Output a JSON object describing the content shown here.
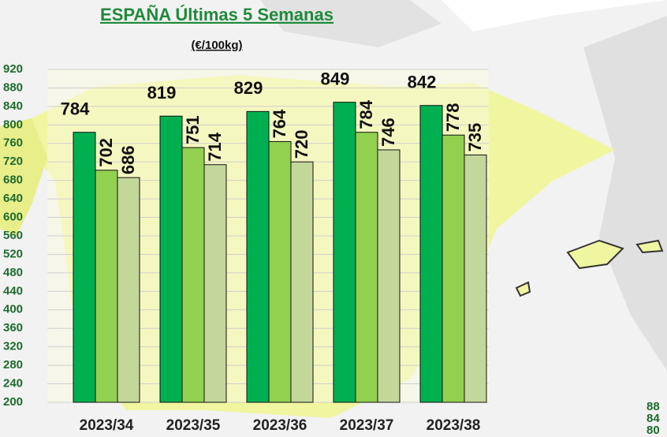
{
  "chart_data": {
    "type": "bar",
    "title": "ESPAÑA Últimas 5 Semanas",
    "subtitle": "(€/100kg)",
    "categories": [
      "2023/34",
      "2023/35",
      "2023/36",
      "2023/37",
      "2023/38"
    ],
    "series": [
      {
        "color": "#00b050",
        "values": [
          784,
          819,
          829,
          849,
          842
        ]
      },
      {
        "color": "#92d050",
        "values": [
          702,
          751,
          764,
          784,
          778
        ]
      },
      {
        "color": "#c4d79b",
        "values": [
          686,
          714,
          720,
          746,
          735
        ]
      }
    ],
    "ylim": [
      200,
      920
    ],
    "yticks": [
      200,
      240,
      280,
      320,
      360,
      400,
      440,
      480,
      520,
      560,
      600,
      640,
      680,
      720,
      760,
      800,
      840,
      880,
      920
    ],
    "grid": true,
    "corner_fragments": [
      "88",
      "84",
      "80"
    ]
  }
}
